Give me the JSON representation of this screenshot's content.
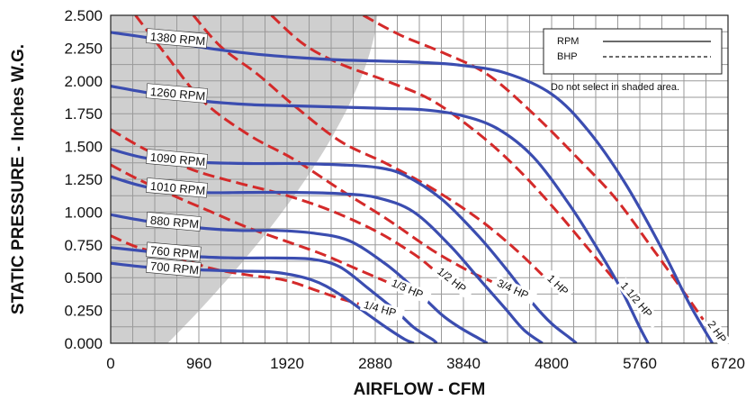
{
  "chart_data": {
    "type": "line",
    "title": "",
    "xlabel": "AIRFLOW - CFM",
    "ylabel": "STATIC PRESSURE - Inches W.G.",
    "xlim": [
      0,
      6720
    ],
    "ylim": [
      0,
      2.5
    ],
    "x_ticks": [
      "0",
      "960",
      "1920",
      "2880",
      "3840",
      "4800",
      "5760",
      "6720"
    ],
    "y_ticks": [
      "0.000",
      "0.250",
      "0.500",
      "0.750",
      "1.000",
      "1.250",
      "1.500",
      "1.750",
      "2.000",
      "2.250",
      "2.500"
    ],
    "grid": true,
    "legend": {
      "position": "top-right",
      "items": [
        {
          "label": "RPM",
          "style": "solid"
        },
        {
          "label": "BHP",
          "style": "dashed"
        }
      ],
      "note": "Do not select in shaded area."
    },
    "colors": {
      "rpm": "#3b4db0",
      "bhp": "#d42a2a",
      "shade": "#cfcfcf"
    },
    "rpm_series": [
      {
        "name": "1380 RPM",
        "x": [
          0,
          400,
          960,
          1500,
          2000,
          2500,
          3000,
          3400,
          3800,
          4300,
          4800,
          5200,
          5600,
          6000,
          6300,
          6550
        ],
        "y": [
          2.37,
          2.33,
          2.26,
          2.21,
          2.18,
          2.16,
          2.15,
          2.14,
          2.12,
          2.06,
          1.9,
          1.62,
          1.22,
          0.72,
          0.3,
          0.0
        ]
      },
      {
        "name": "1260 RPM",
        "x": [
          0,
          400,
          960,
          1500,
          2000,
          2500,
          3000,
          3400,
          3800,
          4200,
          4600,
          5000,
          5300,
          5550,
          5760,
          5850
        ],
        "y": [
          1.96,
          1.91,
          1.85,
          1.82,
          1.81,
          1.8,
          1.79,
          1.78,
          1.74,
          1.64,
          1.42,
          1.05,
          0.72,
          0.42,
          0.12,
          0.0
        ]
      },
      {
        "name": "1090 RPM",
        "x": [
          0,
          400,
          960,
          1500,
          2000,
          2500,
          2900,
          3200,
          3600,
          4000,
          4300,
          4600,
          4800,
          5000,
          5070
        ],
        "y": [
          1.48,
          1.41,
          1.38,
          1.37,
          1.37,
          1.36,
          1.34,
          1.28,
          1.1,
          0.82,
          0.57,
          0.3,
          0.15,
          0.04,
          0.0
        ]
      },
      {
        "name": "1010 RPM",
        "x": [
          0,
          400,
          960,
          1500,
          2000,
          2500,
          2900,
          3300,
          3700,
          4000,
          4300,
          4500,
          4700
        ],
        "y": [
          1.27,
          1.19,
          1.15,
          1.15,
          1.15,
          1.14,
          1.11,
          1.0,
          0.74,
          0.5,
          0.26,
          0.1,
          0.0
        ]
      },
      {
        "name": "880 RPM",
        "x": [
          0,
          400,
          960,
          1400,
          1800,
          2200,
          2600,
          3000,
          3300,
          3600,
          3800,
          4000,
          4100
        ],
        "y": [
          0.98,
          0.93,
          0.88,
          0.86,
          0.86,
          0.84,
          0.78,
          0.6,
          0.42,
          0.22,
          0.12,
          0.04,
          0.0
        ]
      },
      {
        "name": "760 RPM",
        "x": [
          0,
          400,
          960,
          1400,
          1800,
          2200,
          2500,
          2800,
          3100,
          3300,
          3500,
          3550
        ],
        "y": [
          0.73,
          0.7,
          0.66,
          0.65,
          0.65,
          0.64,
          0.58,
          0.42,
          0.25,
          0.12,
          0.03,
          0.0
        ]
      },
      {
        "name": "700 RPM",
        "x": [
          0,
          400,
          960,
          1400,
          1800,
          2200,
          2500,
          2800,
          3000,
          3200,
          3300
        ],
        "y": [
          0.61,
          0.58,
          0.56,
          0.55,
          0.54,
          0.48,
          0.37,
          0.22,
          0.12,
          0.03,
          0.0
        ]
      }
    ],
    "bhp_series": [
      {
        "name": "1/4 HP",
        "x": [
          0,
          300,
          700,
          1100,
          1500,
          1900,
          2250,
          2500,
          2700
        ],
        "y": [
          0.82,
          0.73,
          0.66,
          0.57,
          0.52,
          0.48,
          0.4,
          0.34,
          0.3
        ]
      },
      {
        "name": "1/3 HP",
        "x": [
          0,
          300,
          700,
          1100,
          1500,
          1900,
          2300,
          2700,
          3000
        ],
        "y": [
          1.36,
          1.25,
          1.12,
          1.0,
          0.88,
          0.78,
          0.68,
          0.56,
          0.47
        ]
      },
      {
        "name": "1/2 HP",
        "x": [
          0,
          400,
          900,
          1400,
          1900,
          2400,
          2900,
          3300,
          3500
        ],
        "y": [
          1.63,
          1.47,
          1.32,
          1.22,
          1.13,
          1.01,
          0.85,
          0.68,
          0.57
        ]
      },
      {
        "name": "3/4 HP",
        "x": [
          270,
          600,
          1000,
          1500,
          2000,
          2500,
          3000,
          3500,
          3900,
          4150
        ],
        "y": [
          2.5,
          2.2,
          1.85,
          1.59,
          1.4,
          1.17,
          0.95,
          0.71,
          0.55,
          0.47
        ]
      },
      {
        "name": "1 HP",
        "x": [
          900,
          1200,
          1600,
          2000,
          2500,
          3000,
          3500,
          4000,
          4400,
          4700
        ],
        "y": [
          2.5,
          2.26,
          2.05,
          1.81,
          1.54,
          1.37,
          1.18,
          0.95,
          0.72,
          0.52
        ]
      },
      {
        "name": "1 1/2 HP",
        "x": [
          1750,
          2100,
          2500,
          3000,
          3500,
          4000,
          4400,
          4800,
          5200,
          5500
        ],
        "y": [
          2.5,
          2.28,
          2.13,
          2.0,
          1.85,
          1.6,
          1.35,
          1.05,
          0.72,
          0.47
        ]
      },
      {
        "name": "2 HP",
        "x": [
          2750,
          3150,
          3600,
          4100,
          4600,
          5100,
          5500,
          5900,
          6250,
          6450
        ],
        "y": [
          2.5,
          2.35,
          2.22,
          2.05,
          1.75,
          1.4,
          1.1,
          0.72,
          0.38,
          0.18
        ]
      }
    ]
  }
}
